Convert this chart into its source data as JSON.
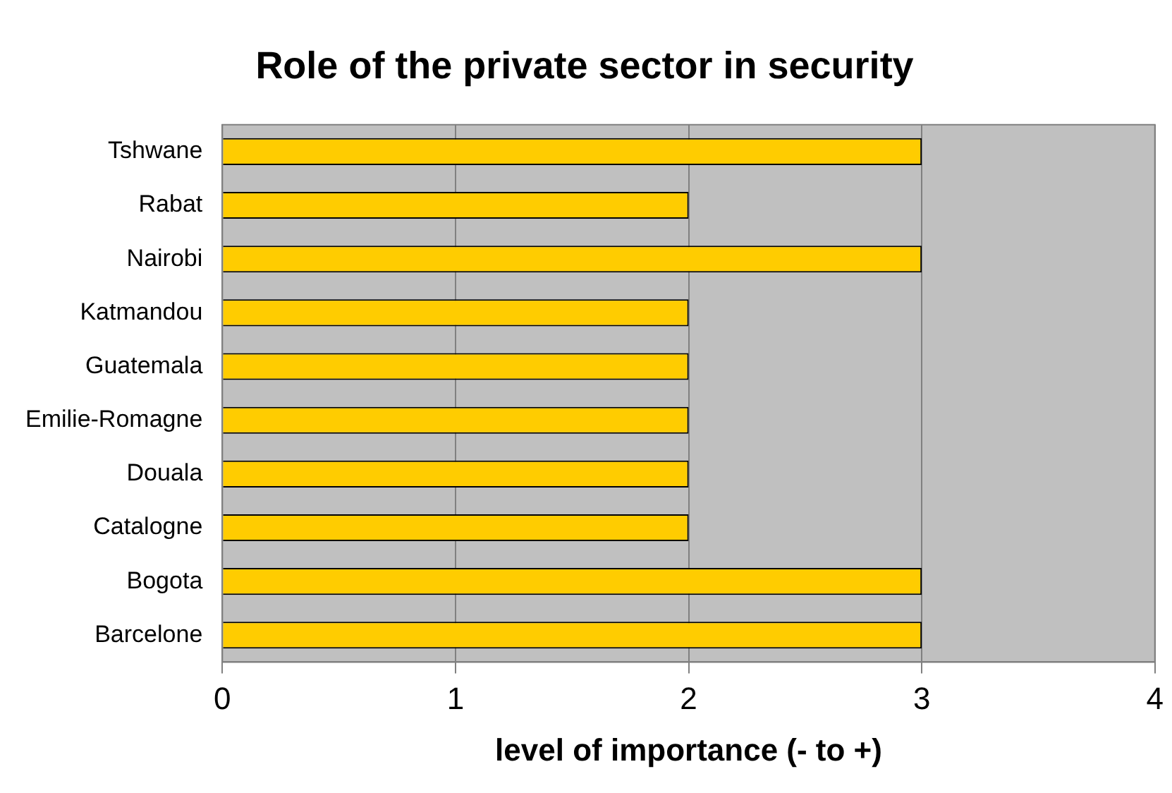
{
  "chart_data": {
    "type": "bar",
    "orientation": "horizontal",
    "title": "Role of the private sector in security",
    "xlabel": "level of importance (- to +)",
    "categories": [
      "Tshwane",
      "Rabat",
      "Nairobi",
      "Katmandou",
      "Guatemala",
      "Emilie-Romagne",
      "Douala",
      "Catalogne",
      "Bogota",
      "Barcelone"
    ],
    "values": [
      3,
      2,
      3,
      2,
      2,
      2,
      2,
      2,
      3,
      3
    ],
    "color": "#ffcc00",
    "xlim": [
      0,
      4
    ],
    "xticks": [
      0,
      1,
      2,
      3,
      4
    ],
    "grid": "x",
    "legend": false
  }
}
